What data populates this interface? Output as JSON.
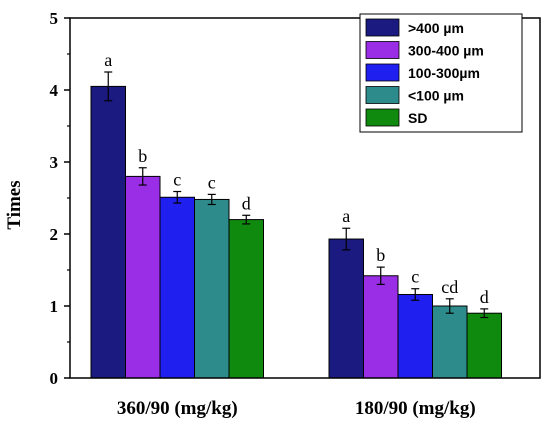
{
  "chart_data": {
    "type": "bar",
    "title": "",
    "xlabel": "",
    "ylabel": "Times",
    "ylim": [
      0,
      5
    ],
    "yticks": [
      0,
      1,
      2,
      3,
      4,
      5
    ],
    "categories": [
      "360/90 (mg/kg)",
      "180/90 (mg/kg)"
    ],
    "grid": false,
    "legend_position": "top-right",
    "series": [
      {
        "name": ">400 µm",
        "color": "#1a1a80",
        "values": [
          4.05,
          1.93
        ],
        "errors": [
          0.2,
          0.15
        ],
        "labels": [
          "a",
          "a"
        ]
      },
      {
        "name": "300-400 µm",
        "color": "#9a2ee6",
        "values": [
          2.8,
          1.42
        ],
        "errors": [
          0.12,
          0.12
        ],
        "labels": [
          "b",
          "b"
        ]
      },
      {
        "name": "100-300µm",
        "color": "#1f1fef",
        "values": [
          2.51,
          1.16
        ],
        "errors": [
          0.08,
          0.08
        ],
        "labels": [
          "c",
          "c"
        ]
      },
      {
        "name": "<100 µm",
        "color": "#2e8b8b",
        "values": [
          2.48,
          1.0
        ],
        "errors": [
          0.07,
          0.1
        ],
        "labels": [
          "c",
          "cd"
        ]
      },
      {
        "name": "SD",
        "color": "#0f8a0f",
        "values": [
          2.2,
          0.9
        ],
        "errors": [
          0.06,
          0.06
        ],
        "labels": [
          "d",
          "d"
        ]
      }
    ]
  }
}
